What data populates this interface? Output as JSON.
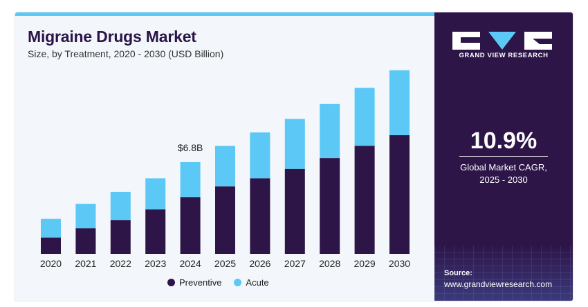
{
  "header": {
    "title": "Migraine Drugs Market",
    "subtitle": "Size, by Treatment, 2020 - 2030 (USD Billion)"
  },
  "sidebar": {
    "brand": "GRAND VIEW RESEARCH",
    "cagr_value": "10.9%",
    "cagr_label_line1": "Global Market CAGR,",
    "cagr_label_line2": "2025 - 2030",
    "source_label": "Source:",
    "source_url": "www.grandviewresearch.com"
  },
  "colors": {
    "preventive": "#2e1548",
    "acute": "#5bc8f5",
    "sidebar_bg": "#2e1548",
    "accent": "#5bc8f5"
  },
  "chart_data": {
    "type": "bar",
    "stacked": true,
    "categories": [
      "2020",
      "2021",
      "2022",
      "2023",
      "2024",
      "2025",
      "2026",
      "2027",
      "2028",
      "2029",
      "2030"
    ],
    "series": [
      {
        "name": "Preventive",
        "values": [
          1.2,
          1.9,
          2.5,
          3.3,
          4.2,
          5.0,
          5.6,
          6.3,
          7.1,
          8.0,
          8.8
        ]
      },
      {
        "name": "Acute",
        "values": [
          1.4,
          1.8,
          2.1,
          2.3,
          2.6,
          3.0,
          3.4,
          3.7,
          4.0,
          4.3,
          4.8
        ]
      }
    ],
    "annotations": [
      {
        "category": "2024",
        "text": "$6.8B"
      }
    ],
    "ylim": [
      0,
      13.8
    ],
    "grid": false,
    "legend_position": "bottom"
  }
}
